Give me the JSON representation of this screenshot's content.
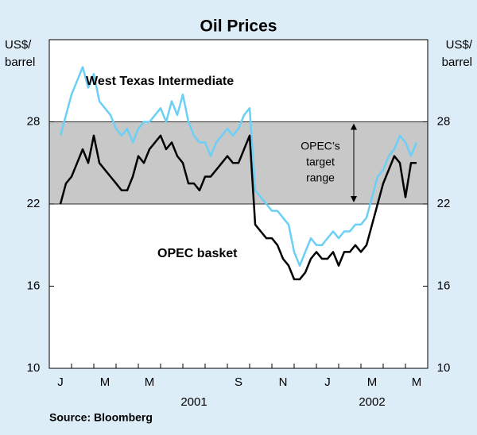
{
  "chart_data": {
    "type": "line",
    "title": "Oil Prices",
    "y_label": [
      "US$/",
      "barrel"
    ],
    "y2_label": [
      "US$/",
      "barrel"
    ],
    "categories": [
      "J",
      null,
      "M",
      null,
      "M",
      null,
      null,
      null,
      "S",
      null,
      "N",
      null,
      "J",
      null,
      "M",
      null,
      "M"
    ],
    "year_ticks": [
      {
        "value": 6.5,
        "label": "2001"
      },
      {
        "value": 14.5,
        "label": "2002"
      }
    ],
    "xlim": [
      0,
      17
    ],
    "ylim": [
      10,
      34
    ],
    "yticks": [
      10,
      16,
      22,
      28
    ],
    "y2lim": [
      10,
      34
    ],
    "y2ticks": [
      10,
      16,
      22,
      28
    ],
    "target_range": [
      22,
      28
    ],
    "annotation": [
      "OPEC’s",
      "target",
      "range"
    ],
    "x": [
      0.5,
      0.75,
      1,
      1.25,
      1.5,
      1.75,
      2,
      2.25,
      2.5,
      2.75,
      3,
      3.25,
      3.5,
      3.75,
      4,
      4.25,
      4.5,
      4.75,
      5,
      5.25,
      5.5,
      5.75,
      6,
      6.25,
      6.5,
      6.75,
      7,
      7.25,
      7.5,
      7.75,
      8,
      8.25,
      8.5,
      8.75,
      9,
      9.25,
      9.5,
      9.75,
      10,
      10.25,
      10.5,
      10.75,
      11,
      11.25,
      11.5,
      11.75,
      12,
      12.25,
      12.5,
      12.75,
      13,
      13.25,
      13.5,
      13.75,
      14,
      14.25,
      14.5,
      14.75,
      15,
      15.25,
      15.5,
      15.75,
      16,
      16.25,
      16.5
    ],
    "series": [
      {
        "name": "West Texas Intermediate",
        "color": "#6ccff6",
        "values": [
          27,
          28.5,
          30,
          31,
          32,
          30.5,
          31.5,
          29.5,
          29,
          28.5,
          27.5,
          27,
          27.5,
          26.5,
          27.5,
          28,
          28,
          28.5,
          29,
          28,
          29.5,
          28.5,
          30,
          28,
          27,
          26.5,
          26.5,
          25.5,
          26.5,
          27,
          27.5,
          27,
          27.5,
          28.5,
          29,
          23,
          22.5,
          22,
          21.5,
          21.5,
          21,
          20.5,
          18.5,
          17.5,
          18.5,
          19.5,
          19,
          19,
          19.5,
          20,
          19.5,
          20,
          20,
          20.5,
          20.5,
          21,
          22.5,
          24,
          24.5,
          25.5,
          26,
          27,
          26.5,
          25.5,
          26.5
        ]
      },
      {
        "name": "OPEC basket",
        "color": "#000000",
        "values": [
          22,
          23.5,
          24,
          25,
          26,
          25,
          27,
          25,
          24.5,
          24,
          23.5,
          23,
          23,
          24,
          25.5,
          25,
          26,
          26.5,
          27,
          26,
          26.5,
          25.5,
          25,
          23.5,
          23.5,
          23,
          24,
          24,
          24.5,
          25,
          25.5,
          25,
          25,
          26,
          27,
          20.5,
          20,
          19.5,
          19.5,
          19,
          18,
          17.5,
          16.5,
          16.5,
          17,
          18,
          18.5,
          18,
          18,
          18.5,
          17.5,
          18.5,
          18.5,
          19,
          18.5,
          19,
          20.5,
          22,
          23.5,
          24.5,
          25.5,
          25,
          22.5,
          25,
          25
        ]
      }
    ],
    "source": "Source: Bloomberg"
  }
}
